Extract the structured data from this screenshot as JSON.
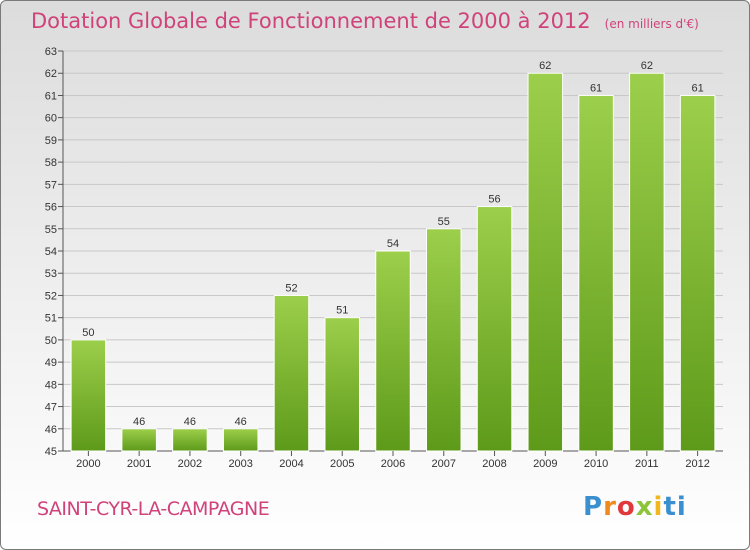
{
  "header": {
    "title": "Dotation Globale de Fonctionnement de 2000 à 2012",
    "subtitle": "(en milliers d'€)"
  },
  "footer": {
    "commune": "SAINT-CYR-LA-CAMPAGNE",
    "logo_letters": [
      "P",
      "r",
      "o",
      "x",
      "i",
      "ti"
    ]
  },
  "colors": {
    "title": "#d0427a",
    "bar_top": "#9ccf4b",
    "bar_bottom": "#5e9a1a"
  },
  "chart_data": {
    "type": "bar",
    "title": "Dotation Globale de Fonctionnement de 2000 à 2012",
    "subtitle": "(en milliers d'€)",
    "xlabel": "",
    "ylabel": "",
    "categories": [
      "2000",
      "2001",
      "2002",
      "2003",
      "2004",
      "2005",
      "2006",
      "2007",
      "2008",
      "2009",
      "2010",
      "2011",
      "2012"
    ],
    "values": [
      50,
      46,
      46,
      46,
      52,
      51,
      54,
      55,
      56,
      62,
      61,
      62,
      61
    ],
    "ylim": [
      45,
      63
    ],
    "yticks": [
      45,
      46,
      47,
      48,
      49,
      50,
      51,
      52,
      53,
      54,
      55,
      56,
      57,
      58,
      59,
      60,
      61,
      62,
      63
    ],
    "grid": true,
    "data_labels": true
  }
}
